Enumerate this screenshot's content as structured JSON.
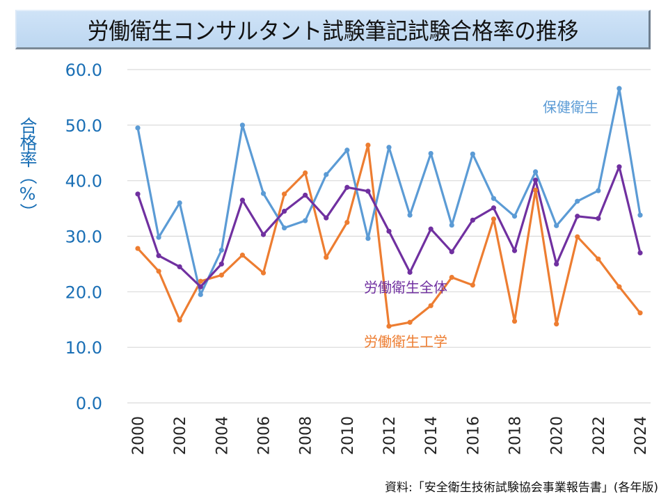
{
  "title": "労働衛生コンサルタント試験筆記試験合格率の推移",
  "source": "資料:「安全衛生技術試験協会事業報告書」(各年版)",
  "colors": {
    "title_bg": "#c5ddf5",
    "axis_text": "#1a6fb5",
    "gridline": "#d9d9d9",
    "hoken": "#5b9bd5",
    "zentai": "#7030a0",
    "kogaku": "#ed7d31"
  },
  "chart_data": {
    "type": "line",
    "title": "労働衛生コンサルタント試験筆記試験合格率の推移",
    "xlabel": "",
    "ylabel": "合格率（%）",
    "ylim": [
      0,
      60
    ],
    "yticks": [
      "0.0",
      "10.0",
      "20.0",
      "30.0",
      "40.0",
      "50.0",
      "60.0"
    ],
    "ytick_values": [
      0,
      10,
      20,
      30,
      40,
      50,
      60
    ],
    "x": [
      2000,
      2001,
      2002,
      2003,
      2004,
      2005,
      2006,
      2007,
      2008,
      2009,
      2010,
      2011,
      2012,
      2013,
      2014,
      2015,
      2016,
      2017,
      2018,
      2019,
      2020,
      2021,
      2022,
      2023,
      2024
    ],
    "xticks": [
      "2000",
      "2002",
      "2004",
      "2006",
      "2008",
      "2010",
      "2012",
      "2014",
      "2016",
      "2018",
      "2020",
      "2022",
      "2024"
    ],
    "grid": true,
    "legend": "inline-labels",
    "series": [
      {
        "name": "保健衛生",
        "color": "#5b9bd5",
        "values": [
          49.5,
          29.8,
          36.0,
          19.5,
          27.5,
          50.0,
          37.7,
          31.5,
          32.8,
          41.1,
          45.5,
          29.6,
          46.0,
          33.8,
          44.9,
          32.0,
          44.8,
          36.8,
          33.6,
          41.6,
          31.9,
          36.3,
          38.2,
          56.6,
          33.8
        ]
      },
      {
        "name": "労働衛生全体",
        "color": "#7030a0",
        "values": [
          37.6,
          26.5,
          24.5,
          20.9,
          25.0,
          36.5,
          30.3,
          34.5,
          37.4,
          33.3,
          38.8,
          38.1,
          30.9,
          23.5,
          31.3,
          27.2,
          32.9,
          35.1,
          27.4,
          40.1,
          25.0,
          33.6,
          33.2,
          42.5,
          27.0
        ]
      },
      {
        "name": "労働衛生工学",
        "color": "#ed7d31",
        "values": [
          27.8,
          23.7,
          14.9,
          21.9,
          23.0,
          26.6,
          23.4,
          37.6,
          41.4,
          26.2,
          32.5,
          46.4,
          13.8,
          14.5,
          17.5,
          22.6,
          21.2,
          33.1,
          14.7,
          38.3,
          14.2,
          29.9,
          25.9,
          20.9,
          16.2
        ]
      }
    ]
  }
}
